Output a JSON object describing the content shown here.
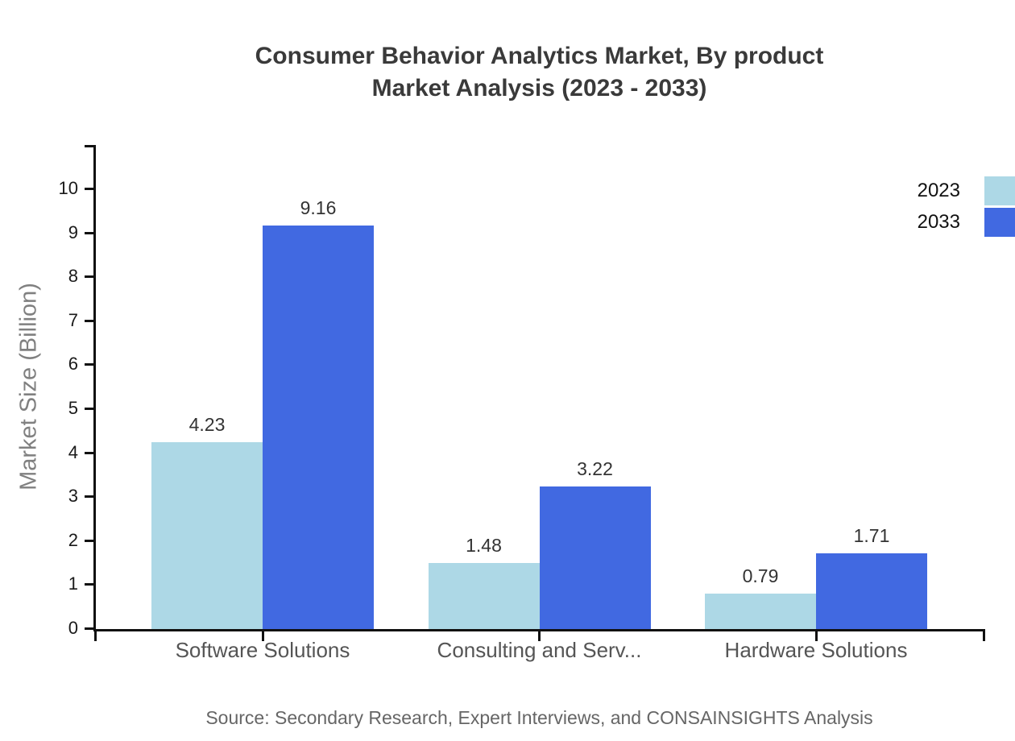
{
  "title": {
    "line1": "Consumer Behavior Analytics Market, By product",
    "line2": "Market Analysis (2023 - 2033)"
  },
  "source": "Source: Secondary Research, Expert Interviews, and CONSAINSIGHTS Analysis",
  "chart_data": {
    "type": "bar",
    "categories": [
      "Software Solutions",
      "Consulting and Serv...",
      "Hardware Solutions"
    ],
    "series": [
      {
        "name": "2023",
        "color": "#ADD8E6",
        "values": [
          4.23,
          1.48,
          0.79
        ]
      },
      {
        "name": "2033",
        "color": "#4169E1",
        "values": [
          9.16,
          3.22,
          1.71
        ]
      }
    ],
    "value_labels": [
      "4.23",
      "1.48",
      "0.79",
      "9.16",
      "3.22",
      "1.71"
    ],
    "title": "Consumer Behavior Analytics Market, By product Market Analysis (2023 - 2033)",
    "xlabel": "",
    "ylabel": "Market Size (Billion)",
    "ylim": [
      0,
      10
    ],
    "yticks": [
      0,
      1,
      2,
      3,
      4,
      5,
      6,
      7,
      8,
      9,
      10
    ],
    "grid": false,
    "legend_position": "top-right",
    "legend_labels": [
      "2023",
      "2033"
    ],
    "axis_color": "#111111",
    "background_color": "#FFFFFF"
  }
}
